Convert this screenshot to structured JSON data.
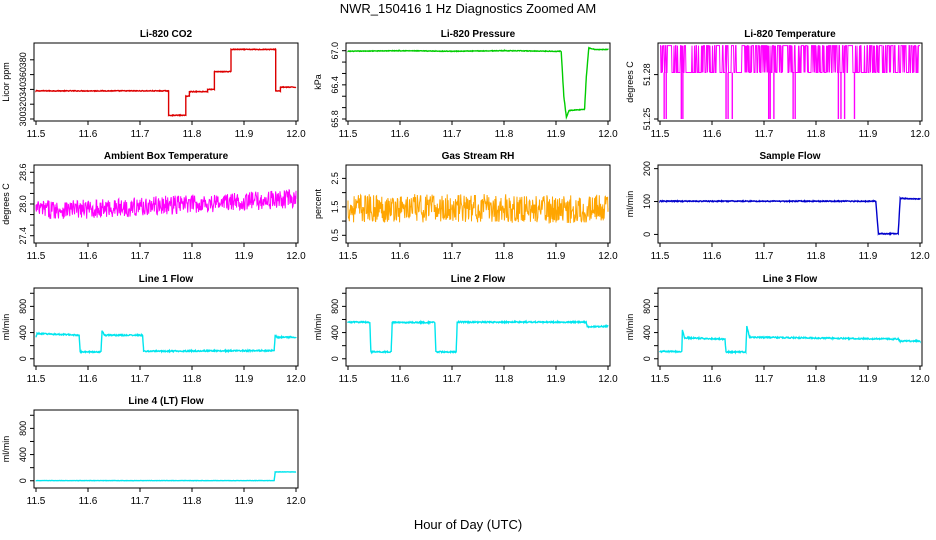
{
  "figure": {
    "title": "NWR_150416  1 Hz Diagnostics Zoomed AM",
    "xlabel": "Hour of Day (UTC)"
  },
  "chart_data": [
    {
      "type": "line",
      "title": "Li-820 CO2",
      "ylabel": "Licor ppm",
      "color": "#dd0000",
      "xlim": [
        11.5,
        12.0
      ],
      "ylim": [
        300,
        400
      ],
      "yticks": [
        300,
        320,
        340,
        360,
        380
      ],
      "xticks": [
        11.5,
        11.6,
        11.7,
        11.8,
        11.9,
        12.0
      ],
      "noise": 1,
      "x": [
        11.5,
        11.755,
        11.755,
        11.788,
        11.788,
        11.795,
        11.795,
        11.83,
        11.83,
        11.843,
        11.843,
        11.875,
        11.875,
        11.961,
        11.961,
        11.97,
        11.97,
        12.0
      ],
      "y": [
        338,
        338,
        305,
        305,
        331,
        331,
        337,
        337,
        340,
        340,
        364,
        364,
        394,
        394,
        338,
        338,
        343,
        343
      ]
    },
    {
      "type": "line",
      "title": "Li-820 Pressure",
      "ylabel": "kPa",
      "color": "#00cc00",
      "xlim": [
        11.5,
        12.0
      ],
      "ylim": [
        65.8,
        67.1
      ],
      "yticks": [
        65.8,
        66.0,
        66.2,
        66.4,
        66.6,
        66.8,
        67.0
      ],
      "ytick_labels": [
        "65.8",
        "66.4",
        "67.0"
      ],
      "xticks": [
        11.5,
        11.6,
        11.7,
        11.8,
        11.9,
        12.0
      ],
      "noise": 0.01,
      "x": [
        11.5,
        11.6,
        11.7,
        11.8,
        11.9,
        11.91,
        11.915,
        11.92,
        11.925,
        11.955,
        11.958,
        11.963,
        11.975,
        12.0
      ],
      "y": [
        66.99,
        67.0,
        66.99,
        67.0,
        66.99,
        66.99,
        66.2,
        65.83,
        65.95,
        65.97,
        66.5,
        67.05,
        67.02,
        67.02
      ]
    },
    {
      "type": "line",
      "title": "Li-820 Temperature",
      "ylabel": "degrees C",
      "color": "#ff00ff",
      "xlim": [
        11.5,
        12.0
      ],
      "ylim": [
        51.25,
        51.3
      ],
      "yticks": [
        51.25,
        51.28
      ],
      "ytick_labels": [
        "51.25",
        "51.28"
      ],
      "xticks": [
        11.5,
        11.6,
        11.7,
        11.8,
        11.9,
        12.0
      ],
      "levels": [
        51.2814,
        51.2996
      ],
      "dips": [
        11.508,
        11.512,
        11.541,
        11.544,
        11.627,
        11.631,
        11.639,
        11.709,
        11.712,
        11.719,
        11.756,
        11.76,
        11.843,
        11.848,
        11.855,
        11.874
      ]
    },
    {
      "type": "line",
      "title": "Ambient Box Temperature",
      "ylabel": "degrees C",
      "color": "#ff00ff",
      "xlim": [
        11.5,
        12.0
      ],
      "ylim": [
        27.3,
        28.7
      ],
      "yticks": [
        27.4,
        27.6,
        27.8,
        28.0,
        28.2,
        28.4,
        28.6
      ],
      "ytick_labels": [
        "27.4",
        "28.0",
        "28.6"
      ],
      "xticks": [
        11.5,
        11.6,
        11.7,
        11.8,
        11.9,
        12.0
      ],
      "noise": 0.36,
      "x": [
        11.5,
        11.6,
        11.7,
        11.8,
        11.9,
        12.0
      ],
      "y": [
        27.9,
        27.9,
        27.95,
        28.0,
        28.05,
        28.1
      ]
    },
    {
      "type": "line",
      "title": "Gas Stream RH",
      "ylabel": "percent",
      "color": "#ffa500",
      "xlim": [
        11.5,
        12.0
      ],
      "ylim": [
        0.3,
        2.9
      ],
      "yticks": [
        0.5,
        1.0,
        1.5,
        2.0,
        2.5
      ],
      "ytick_labels": [
        "0.5",
        "1.5",
        "2.5"
      ],
      "xticks": [
        11.5,
        11.6,
        11.7,
        11.8,
        11.9,
        12.0
      ],
      "noise": 1.0,
      "x": [
        11.5,
        11.6,
        11.7,
        11.8,
        11.9,
        12.0
      ],
      "y": [
        1.45,
        1.45,
        1.45,
        1.45,
        1.4,
        1.45
      ]
    },
    {
      "type": "line",
      "title": "Sample Flow",
      "ylabel": "ml/min",
      "color": "#0000cc",
      "xlim": [
        11.5,
        12.0
      ],
      "ylim": [
        -20,
        205
      ],
      "yticks": [
        0,
        100,
        200
      ],
      "xticks": [
        11.5,
        11.6,
        11.7,
        11.8,
        11.9,
        12.0
      ],
      "noise": 3,
      "x": [
        11.5,
        11.915,
        11.92,
        11.958,
        11.962,
        12.0
      ],
      "y": [
        101,
        101,
        2,
        2,
        110,
        107
      ]
    },
    {
      "type": "line",
      "title": "Line 1 Flow",
      "ylabel": "ml/min",
      "color": "#00e5ee",
      "xlim": [
        11.5,
        12.0
      ],
      "ylim": [
        -80,
        1050
      ],
      "yticks": [
        0,
        200,
        400,
        600,
        800,
        1000
      ],
      "ytick_labels": [
        "0",
        "400",
        "800"
      ],
      "xticks": [
        11.5,
        11.6,
        11.7,
        11.8,
        11.9,
        12.0
      ],
      "noise": 20,
      "x": [
        11.5,
        11.502,
        11.583,
        11.585,
        11.625,
        11.627,
        11.632,
        11.705,
        11.707,
        11.958,
        11.96,
        11.963,
        12.0
      ],
      "y": [
        330,
        385,
        360,
        105,
        105,
        430,
        360,
        360,
        115,
        125,
        360,
        330,
        330
      ]
    },
    {
      "type": "line",
      "title": "Line 2 Flow",
      "ylabel": "ml/min",
      "color": "#00e5ee",
      "xlim": [
        11.5,
        12.0
      ],
      "ylim": [
        -80,
        1050
      ],
      "yticks": [
        0,
        200,
        400,
        600,
        800,
        1000
      ],
      "ytick_labels": [
        "0",
        "400",
        "800"
      ],
      "xticks": [
        11.5,
        11.6,
        11.7,
        11.8,
        11.9,
        12.0
      ],
      "noise": 20,
      "x": [
        11.5,
        11.542,
        11.544,
        11.583,
        11.585,
        11.667,
        11.669,
        11.708,
        11.71,
        11.958,
        11.96,
        12.0
      ],
      "y": [
        560,
        560,
        105,
        105,
        555,
        555,
        105,
        105,
        560,
        560,
        490,
        495
      ]
    },
    {
      "type": "line",
      "title": "Line 3 Flow",
      "ylabel": "ml/min",
      "color": "#00e5ee",
      "xlim": [
        11.5,
        12.0
      ],
      "ylim": [
        -80,
        1050
      ],
      "yticks": [
        0,
        200,
        400,
        600,
        800,
        1000
      ],
      "ytick_labels": [
        "0",
        "400",
        "800"
      ],
      "xticks": [
        11.5,
        11.6,
        11.7,
        11.8,
        11.9,
        12.0
      ],
      "noise": 20,
      "x": [
        11.5,
        11.542,
        11.543,
        11.547,
        11.625,
        11.627,
        11.665,
        11.667,
        11.672,
        11.958,
        11.962,
        12.0
      ],
      "y": [
        110,
        110,
        440,
        320,
        300,
        105,
        105,
        500,
        330,
        300,
        270,
        270
      ]
    },
    {
      "type": "line",
      "title": "Line 4 (LT) Flow",
      "ylabel": "ml/min",
      "color": "#00e5ee",
      "xlim": [
        11.5,
        12.0
      ],
      "ylim": [
        -80,
        1050
      ],
      "yticks": [
        0,
        200,
        400,
        600,
        800,
        1000
      ],
      "ytick_labels": [
        "0",
        "400",
        "800"
      ],
      "xticks": [
        11.5,
        11.6,
        11.7,
        11.8,
        11.9,
        12.0
      ],
      "noise": 4,
      "x": [
        11.5,
        11.958,
        11.96,
        12.0
      ],
      "y": [
        2,
        2,
        135,
        135
      ]
    }
  ]
}
